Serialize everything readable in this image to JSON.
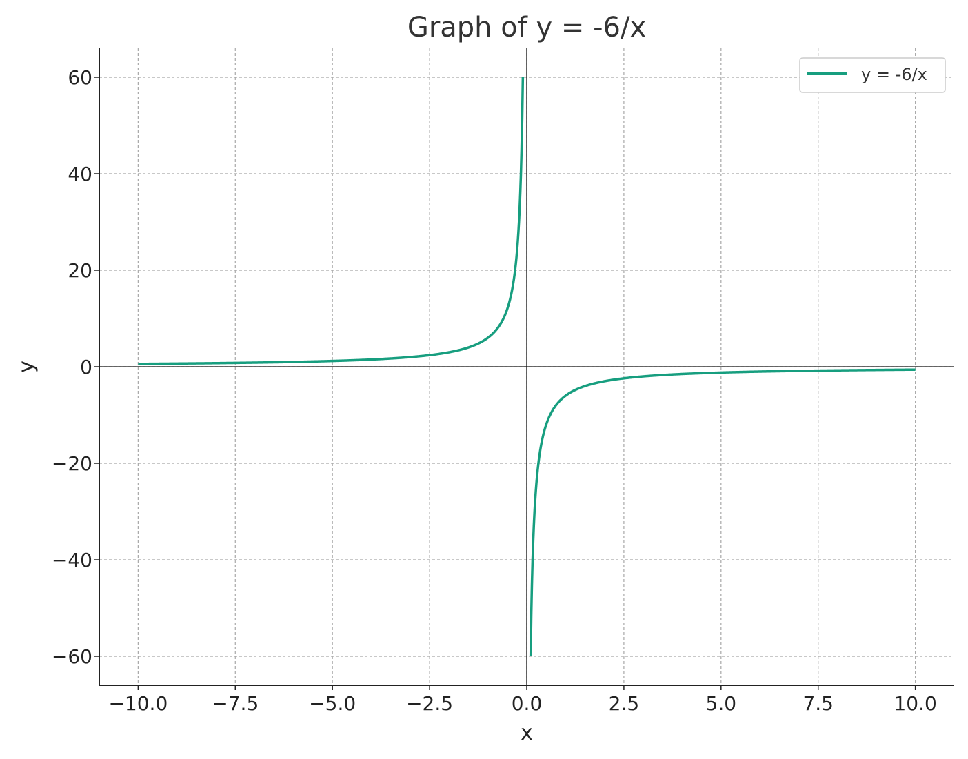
{
  "chart_data": {
    "type": "line",
    "title": "Graph of y = -6/x",
    "xlabel": "x",
    "ylabel": "y",
    "xlim": [
      -11,
      11
    ],
    "ylim": [
      -66,
      66
    ],
    "grid": true,
    "legend_position": "top-right",
    "x_ticks": [
      -10.0,
      -7.5,
      -5.0,
      -2.5,
      0.0,
      2.5,
      5.0,
      7.5,
      10.0
    ],
    "x_tick_labels": [
      "−10.0",
      "−7.5",
      "−5.0",
      "−2.5",
      "0.0",
      "2.5",
      "5.0",
      "7.5",
      "10.0"
    ],
    "y_ticks": [
      60,
      40,
      20,
      0,
      -20,
      -40,
      -60
    ],
    "y_tick_labels": [
      "60",
      "40",
      "20",
      "0",
      "−20",
      "−40",
      "−60"
    ],
    "series": [
      {
        "name": "y = -6/x",
        "function": "-6/x",
        "color": "#179e7f",
        "segments": [
          {
            "x_min": -10.0,
            "x_max": -0.1
          },
          {
            "x_min": 0.1,
            "x_max": 10.0
          }
        ]
      }
    ]
  }
}
